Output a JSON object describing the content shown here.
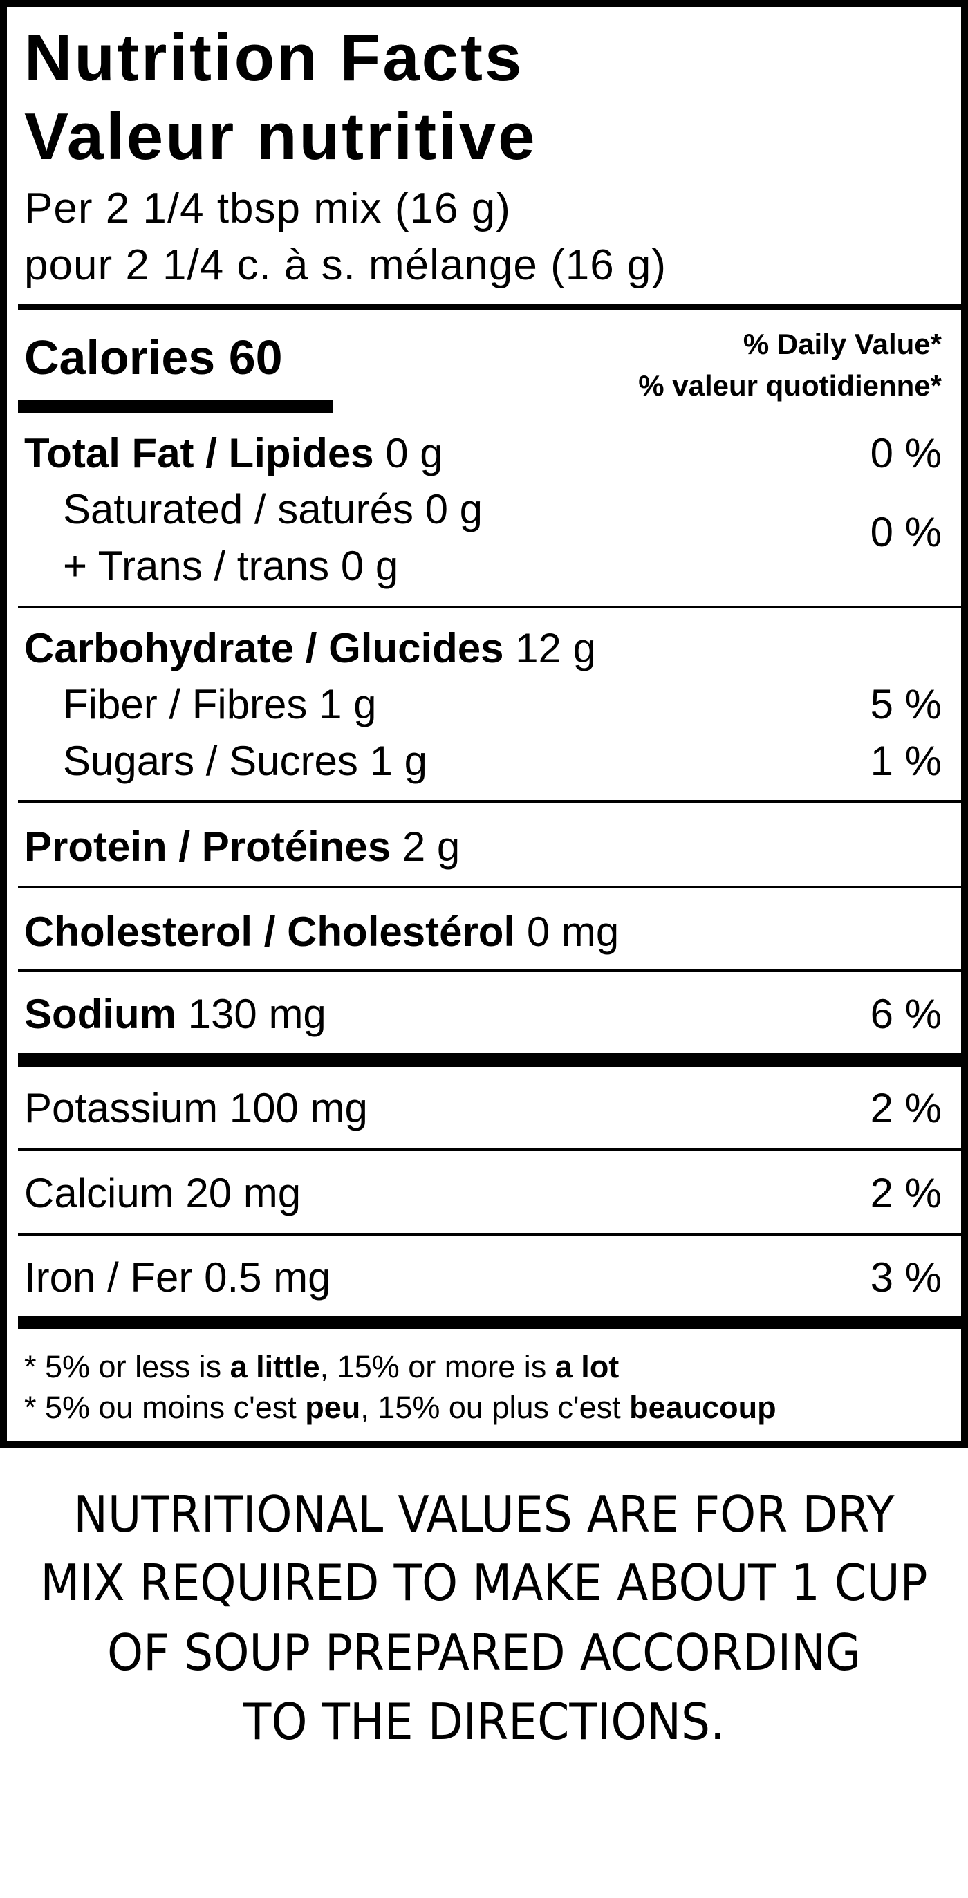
{
  "label": {
    "title_en": "Nutrition Facts",
    "title_fr": "Valeur nutritive",
    "serving_en": "Per 2 1/4 tbsp mix (16 g)",
    "serving_fr": "pour 2 1/4 c. à s. mélange (16 g)",
    "calories_label": "Calories",
    "calories_value": "60",
    "dv_header_en": "% Daily Value*",
    "dv_header_fr": "% valeur quotidienne*",
    "nutrients": [
      {
        "name": "Total Fat / Lipides",
        "amount": "0 g",
        "dv": "0 %"
      },
      {
        "name": "Saturated / saturés",
        "amount": "0 g"
      },
      {
        "name": "+ Trans / trans",
        "amount": "0 g",
        "dv": "0 %"
      },
      {
        "name": "Carbohydrate / Glucides",
        "amount": "12 g"
      },
      {
        "name": "Fiber / Fibres",
        "amount": "1 g",
        "dv": "5 %"
      },
      {
        "name": "Sugars / Sucres",
        "amount": "1 g",
        "dv": "1 %"
      },
      {
        "name": "Protein / Protéines",
        "amount": "2 g"
      },
      {
        "name": "Cholesterol / Cholestérol",
        "amount": "0 mg"
      },
      {
        "name": "Sodium",
        "amount": "130 mg",
        "dv": "6 %"
      },
      {
        "name": "Potassium 100 mg",
        "dv": "2 %"
      },
      {
        "name": "Calcium 20 mg",
        "dv": "2 %"
      },
      {
        "name": "Iron / Fer 0.5 mg",
        "dv": "3 %"
      }
    ],
    "footnote_en": {
      "a": "* 5% or less is ",
      "b": "a little",
      "c": ", 15% or more is ",
      "d": "a lot"
    },
    "footnote_fr": {
      "a": "* 5% ou moins c'est ",
      "b": "peu",
      "c": ", 15% ou plus c'est ",
      "d": "beaucoup"
    }
  },
  "note_lines": [
    "NUTRITIONAL VALUES ARE FOR DRY",
    "MIX REQUIRED TO MAKE ABOUT 1 CUP",
    "OF SOUP PREPARED ACCORDING",
    "TO THE DIRECTIONS."
  ]
}
